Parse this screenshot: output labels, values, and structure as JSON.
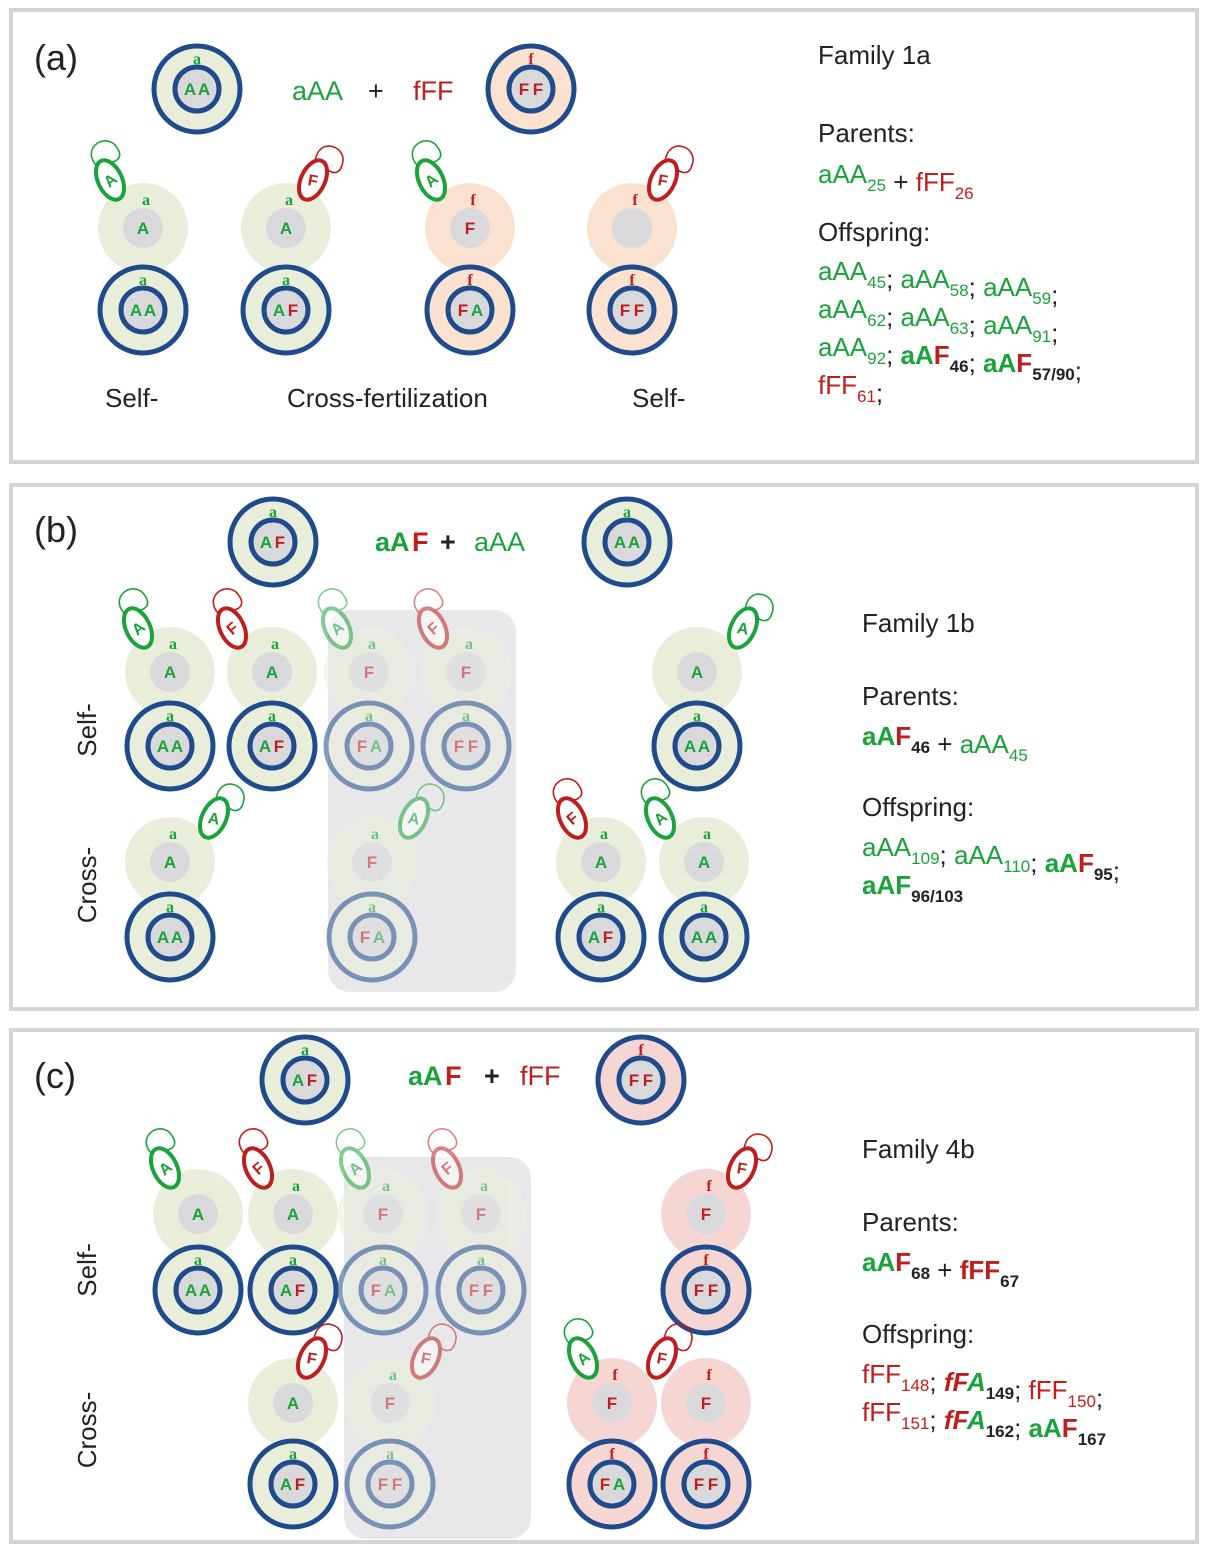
{
  "colors": {
    "green": "#1aa33a",
    "red": "#c01d1d",
    "navy": "#1f4b8c",
    "greenBg": "#e9eedb",
    "orangeBg": "#fbe1cf",
    "pinkBg": "#f6d6d2",
    "gray": "#d9d9dc",
    "shade": "#e8e8ea",
    "frame": "#d4d4d4"
  },
  "panels": [
    {
      "tag": "(a)",
      "cross": {
        "left": "aAA",
        "plus": "+",
        "right": "fFF"
      },
      "family": "Family 1a",
      "parentsLabel": "Parents:",
      "parents": [
        {
          "t": "aAA",
          "s": "25",
          "c": "g",
          "b": false
        },
        {
          "t": " + ",
          "c": "k",
          "b": false
        },
        {
          "t": "fFF",
          "s": "26",
          "c": "r",
          "b": false
        }
      ],
      "offspringLabel": "Offspring:",
      "offspring": [
        [
          {
            "t": "aAA",
            "s": "45",
            "c": "g",
            "b": false
          },
          {
            "t": "; ",
            "c": "k"
          },
          {
            "t": "aAA",
            "s": "58",
            "c": "g",
            "b": false
          },
          {
            "t": "; ",
            "c": "k"
          },
          {
            "t": "aAA",
            "s": "59",
            "c": "g",
            "b": false
          },
          {
            "t": ";",
            "c": "k"
          }
        ],
        [
          {
            "t": "aAA",
            "s": "62",
            "c": "g",
            "b": false
          },
          {
            "t": "; ",
            "c": "k"
          },
          {
            "t": "aAA",
            "s": "63",
            "c": "g",
            "b": false
          },
          {
            "t": ";  ",
            "c": "k"
          },
          {
            "t": "aAA",
            "s": "91",
            "c": "g",
            "b": false
          },
          {
            "t": ";",
            "c": "k"
          }
        ],
        [
          {
            "t": "aAA",
            "s": "92",
            "c": "g",
            "b": false
          },
          {
            "t": "; ",
            "c": "k"
          },
          {
            "t": "aA",
            "c": "g",
            "b": true
          },
          {
            "t": "F",
            "s": "46",
            "c": "r",
            "b": true,
            "sc": "k"
          },
          {
            "t": ";  ",
            "c": "k"
          },
          {
            "t": "aA",
            "c": "g",
            "b": true
          },
          {
            "t": "F",
            "s": "57/90",
            "c": "r",
            "b": true,
            "sc": "k"
          },
          {
            "t": ";",
            "c": "k"
          }
        ],
        [
          {
            "t": "fFF",
            "s": "61",
            "c": "r",
            "b": false
          },
          {
            "t": ";",
            "c": "k"
          }
        ]
      ],
      "bottomLabels": {
        "left": "Self-",
        "middle": "Cross-fertilization",
        "right": "Self-"
      }
    },
    {
      "tag": "(b)",
      "cross": {
        "left": "aAF",
        "plus": "+",
        "right": "aAA"
      },
      "family": "Family 1b",
      "parentsLabel": "Parents:",
      "parents": [
        {
          "t": "aA",
          "c": "g",
          "b": true
        },
        {
          "t": "F",
          "s": "46",
          "c": "r",
          "b": true,
          "sc": "k"
        },
        {
          "t": " + ",
          "c": "k",
          "b": false
        },
        {
          "t": "aAA",
          "s": "45",
          "c": "g",
          "b": false
        }
      ],
      "offspringLabel": "Offspring:",
      "offspring": [
        [
          {
            "t": "aAA",
            "s": "109",
            "c": "g"
          },
          {
            "t": "; ",
            "c": "k"
          },
          {
            "t": "aAA",
            "s": "110",
            "c": "g"
          },
          {
            "t": ";  ",
            "c": "k"
          },
          {
            "t": "aA",
            "c": "g",
            "b": true
          },
          {
            "t": "F",
            "s": "95",
            "c": "r",
            "b": true,
            "sc": "k"
          },
          {
            "t": ";",
            "c": "k"
          }
        ],
        [
          {
            "t": "aA",
            "c": "g",
            "b": true
          },
          {
            "t": "F",
            "s": "96/103",
            "c": "g",
            "b": true,
            "sc": "k"
          }
        ]
      ],
      "rowLabels": {
        "self": "Self-",
        "cross": "Cross-"
      }
    },
    {
      "tag": "(c)",
      "cross": {
        "left": "aAF",
        "plus": "+",
        "right": "fFF"
      },
      "family": "Family 4b",
      "parentsLabel": "Parents:",
      "parents": [
        {
          "t": "aA",
          "c": "g",
          "b": true
        },
        {
          "t": "F",
          "s": "68",
          "c": "r",
          "b": true,
          "sc": "k"
        },
        {
          "t": " + ",
          "c": "k",
          "b": false
        },
        {
          "t": "fFF",
          "s": "67",
          "c": "r",
          "b": true,
          "sc": "k"
        }
      ],
      "offspringLabel": "Offspring:",
      "offspring": [
        [
          {
            "t": "fFF",
            "s": "148",
            "c": "r"
          },
          {
            "t": "; ",
            "c": "k"
          },
          {
            "t": "fF",
            "c": "r",
            "b": true,
            "i": true
          },
          {
            "t": "A",
            "s": "149",
            "c": "g",
            "b": true,
            "i": true,
            "sc": "k"
          },
          {
            "t": "; ",
            "c": "k"
          },
          {
            "t": "fFF",
            "s": "150",
            "c": "r"
          },
          {
            "t": ";",
            "c": "k"
          }
        ],
        [
          {
            "t": "fFF",
            "s": "151",
            "c": "r"
          },
          {
            "t": "; ",
            "c": "k"
          },
          {
            "t": "fF",
            "c": "r",
            "b": true,
            "i": true
          },
          {
            "t": "A",
            "s": "162",
            "c": "g",
            "b": true,
            "i": true,
            "sc": "k"
          },
          {
            "t": ";  ",
            "c": "k"
          },
          {
            "t": "aA",
            "c": "g",
            "b": true
          },
          {
            "t": "F",
            "s": "167",
            "c": "r",
            "b": true,
            "sc": "k"
          }
        ]
      ],
      "rowLabels": {
        "self": "Self-",
        "cross": "Cross-"
      }
    }
  ],
  "cells": {
    "a": [
      {
        "kind": "parent",
        "small": "a",
        "inner": [
          "A",
          "A"
        ],
        "bg": "green"
      },
      {
        "kind": "parent",
        "small": "f",
        "inner": [
          "F",
          "F"
        ],
        "bg": "orange"
      },
      {
        "kind": "gamete",
        "small": "a",
        "nucleus": "A",
        "bg": "green",
        "sperm": "A"
      },
      {
        "kind": "gamete",
        "small": "a",
        "nucleus": "A",
        "bg": "green",
        "sperm": "F"
      },
      {
        "kind": "gamete",
        "small": "f",
        "nucleus": "F",
        "bg": "orange",
        "sperm": "A"
      },
      {
        "kind": "gamete",
        "small": "f",
        "nucleus": "",
        "bg": "orange",
        "sperm": "F"
      },
      {
        "kind": "zygote",
        "small": "a",
        "inner": [
          "A",
          "A"
        ],
        "bg": "green"
      },
      {
        "kind": "zygote",
        "small": "a",
        "inner": [
          "A",
          "F"
        ],
        "bg": "green"
      },
      {
        "kind": "zygote",
        "small": "f",
        "inner": [
          "F",
          "A"
        ],
        "bg": "orange"
      },
      {
        "kind": "zygote",
        "small": "f",
        "inner": [
          "F",
          "F"
        ],
        "bg": "orange"
      }
    ],
    "b": [
      {
        "kind": "parent",
        "small": "a",
        "inner": [
          "A",
          "F"
        ]
      },
      {
        "kind": "parent",
        "small": "a",
        "inner": [
          "A",
          "A"
        ]
      },
      {
        "kind": "gamete",
        "small": "a",
        "nucleus": "A",
        "sperm": "A"
      },
      {
        "kind": "gamete",
        "small": "a",
        "nucleus": "A",
        "sperm": "F"
      },
      {
        "kind": "gamete",
        "small": "a",
        "nucleus": "F",
        "sperm": "A"
      },
      {
        "kind": "gamete",
        "small": "a",
        "nucleus": "F",
        "sperm": "F"
      },
      {
        "kind": "gamete",
        "small": "",
        "nucleus": "A",
        "sperm": "A"
      },
      {
        "kind": "zygote",
        "small": "a",
        "inner": [
          "A",
          "A"
        ]
      },
      {
        "kind": "zygote",
        "small": "a",
        "inner": [
          "A",
          "F"
        ]
      },
      {
        "kind": "zygote",
        "small": "a",
        "inner": [
          "F",
          "A"
        ]
      },
      {
        "kind": "zygote",
        "small": "a",
        "inner": [
          "F",
          "F"
        ]
      },
      {
        "kind": "zygote",
        "small": "a",
        "inner": [
          "A",
          "A"
        ]
      },
      {
        "kind": "gamete",
        "small": "a",
        "nucleus": "A",
        "sperm": "A"
      },
      {
        "kind": "gamete",
        "small": "a",
        "nucleus": "F",
        "sperm": "A"
      },
      {
        "kind": "gamete",
        "small": "a",
        "nucleus": "A",
        "sperm": "F"
      },
      {
        "kind": "gamete",
        "small": "a",
        "nucleus": "A",
        "sperm": "A"
      },
      {
        "kind": "zygote",
        "small": "a",
        "inner": [
          "A",
          "A"
        ]
      },
      {
        "kind": "zygote",
        "small": "a",
        "inner": [
          "F",
          "A"
        ]
      },
      {
        "kind": "zygote",
        "small": "a",
        "inner": [
          "A",
          "F"
        ]
      },
      {
        "kind": "zygote",
        "small": "a",
        "inner": [
          "A",
          "A"
        ]
      }
    ],
    "c": [
      {
        "kind": "parent",
        "small": "a",
        "inner": [
          "A",
          "F"
        ]
      },
      {
        "kind": "parent",
        "small": "f",
        "inner": [
          "F",
          "F"
        ]
      },
      {
        "kind": "gamete",
        "small": "",
        "nucleus": "A",
        "sperm": "A"
      },
      {
        "kind": "gamete",
        "small": "a",
        "nucleus": "A",
        "sperm": "F"
      },
      {
        "kind": "gamete",
        "small": "a",
        "nucleus": "F",
        "sperm": "A"
      },
      {
        "kind": "gamete",
        "small": "a",
        "nucleus": "F",
        "sperm": "F"
      },
      {
        "kind": "gamete",
        "small": "f",
        "nucleus": "F",
        "sperm": "F"
      },
      {
        "kind": "zygote",
        "small": "a",
        "inner": [
          "A",
          "A"
        ]
      },
      {
        "kind": "zygote",
        "small": "a",
        "inner": [
          "A",
          "F"
        ]
      },
      {
        "kind": "zygote",
        "small": "a",
        "inner": [
          "F",
          "A"
        ]
      },
      {
        "kind": "zygote",
        "small": "a",
        "inner": [
          "F",
          "F"
        ]
      },
      {
        "kind": "zygote",
        "small": "f",
        "inner": [
          "F",
          "F"
        ]
      },
      {
        "kind": "gamete",
        "small": "",
        "nucleus": "A",
        "sperm": "F"
      },
      {
        "kind": "gamete",
        "small": "a",
        "nucleus": "F",
        "sperm": "F"
      },
      {
        "kind": "gamete",
        "small": "f",
        "nucleus": "F",
        "sperm": "A"
      },
      {
        "kind": "gamete",
        "small": "f",
        "nucleus": "F",
        "sperm": "F"
      },
      {
        "kind": "zygote",
        "small": "a",
        "inner": [
          "A",
          "F"
        ]
      },
      {
        "kind": "zygote",
        "small": "a",
        "inner": [
          "F",
          "F"
        ]
      },
      {
        "kind": "zygote",
        "small": "f",
        "inner": [
          "F",
          "A"
        ]
      },
      {
        "kind": "zygote",
        "small": "f",
        "inner": [
          "F",
          "F"
        ]
      }
    ]
  }
}
